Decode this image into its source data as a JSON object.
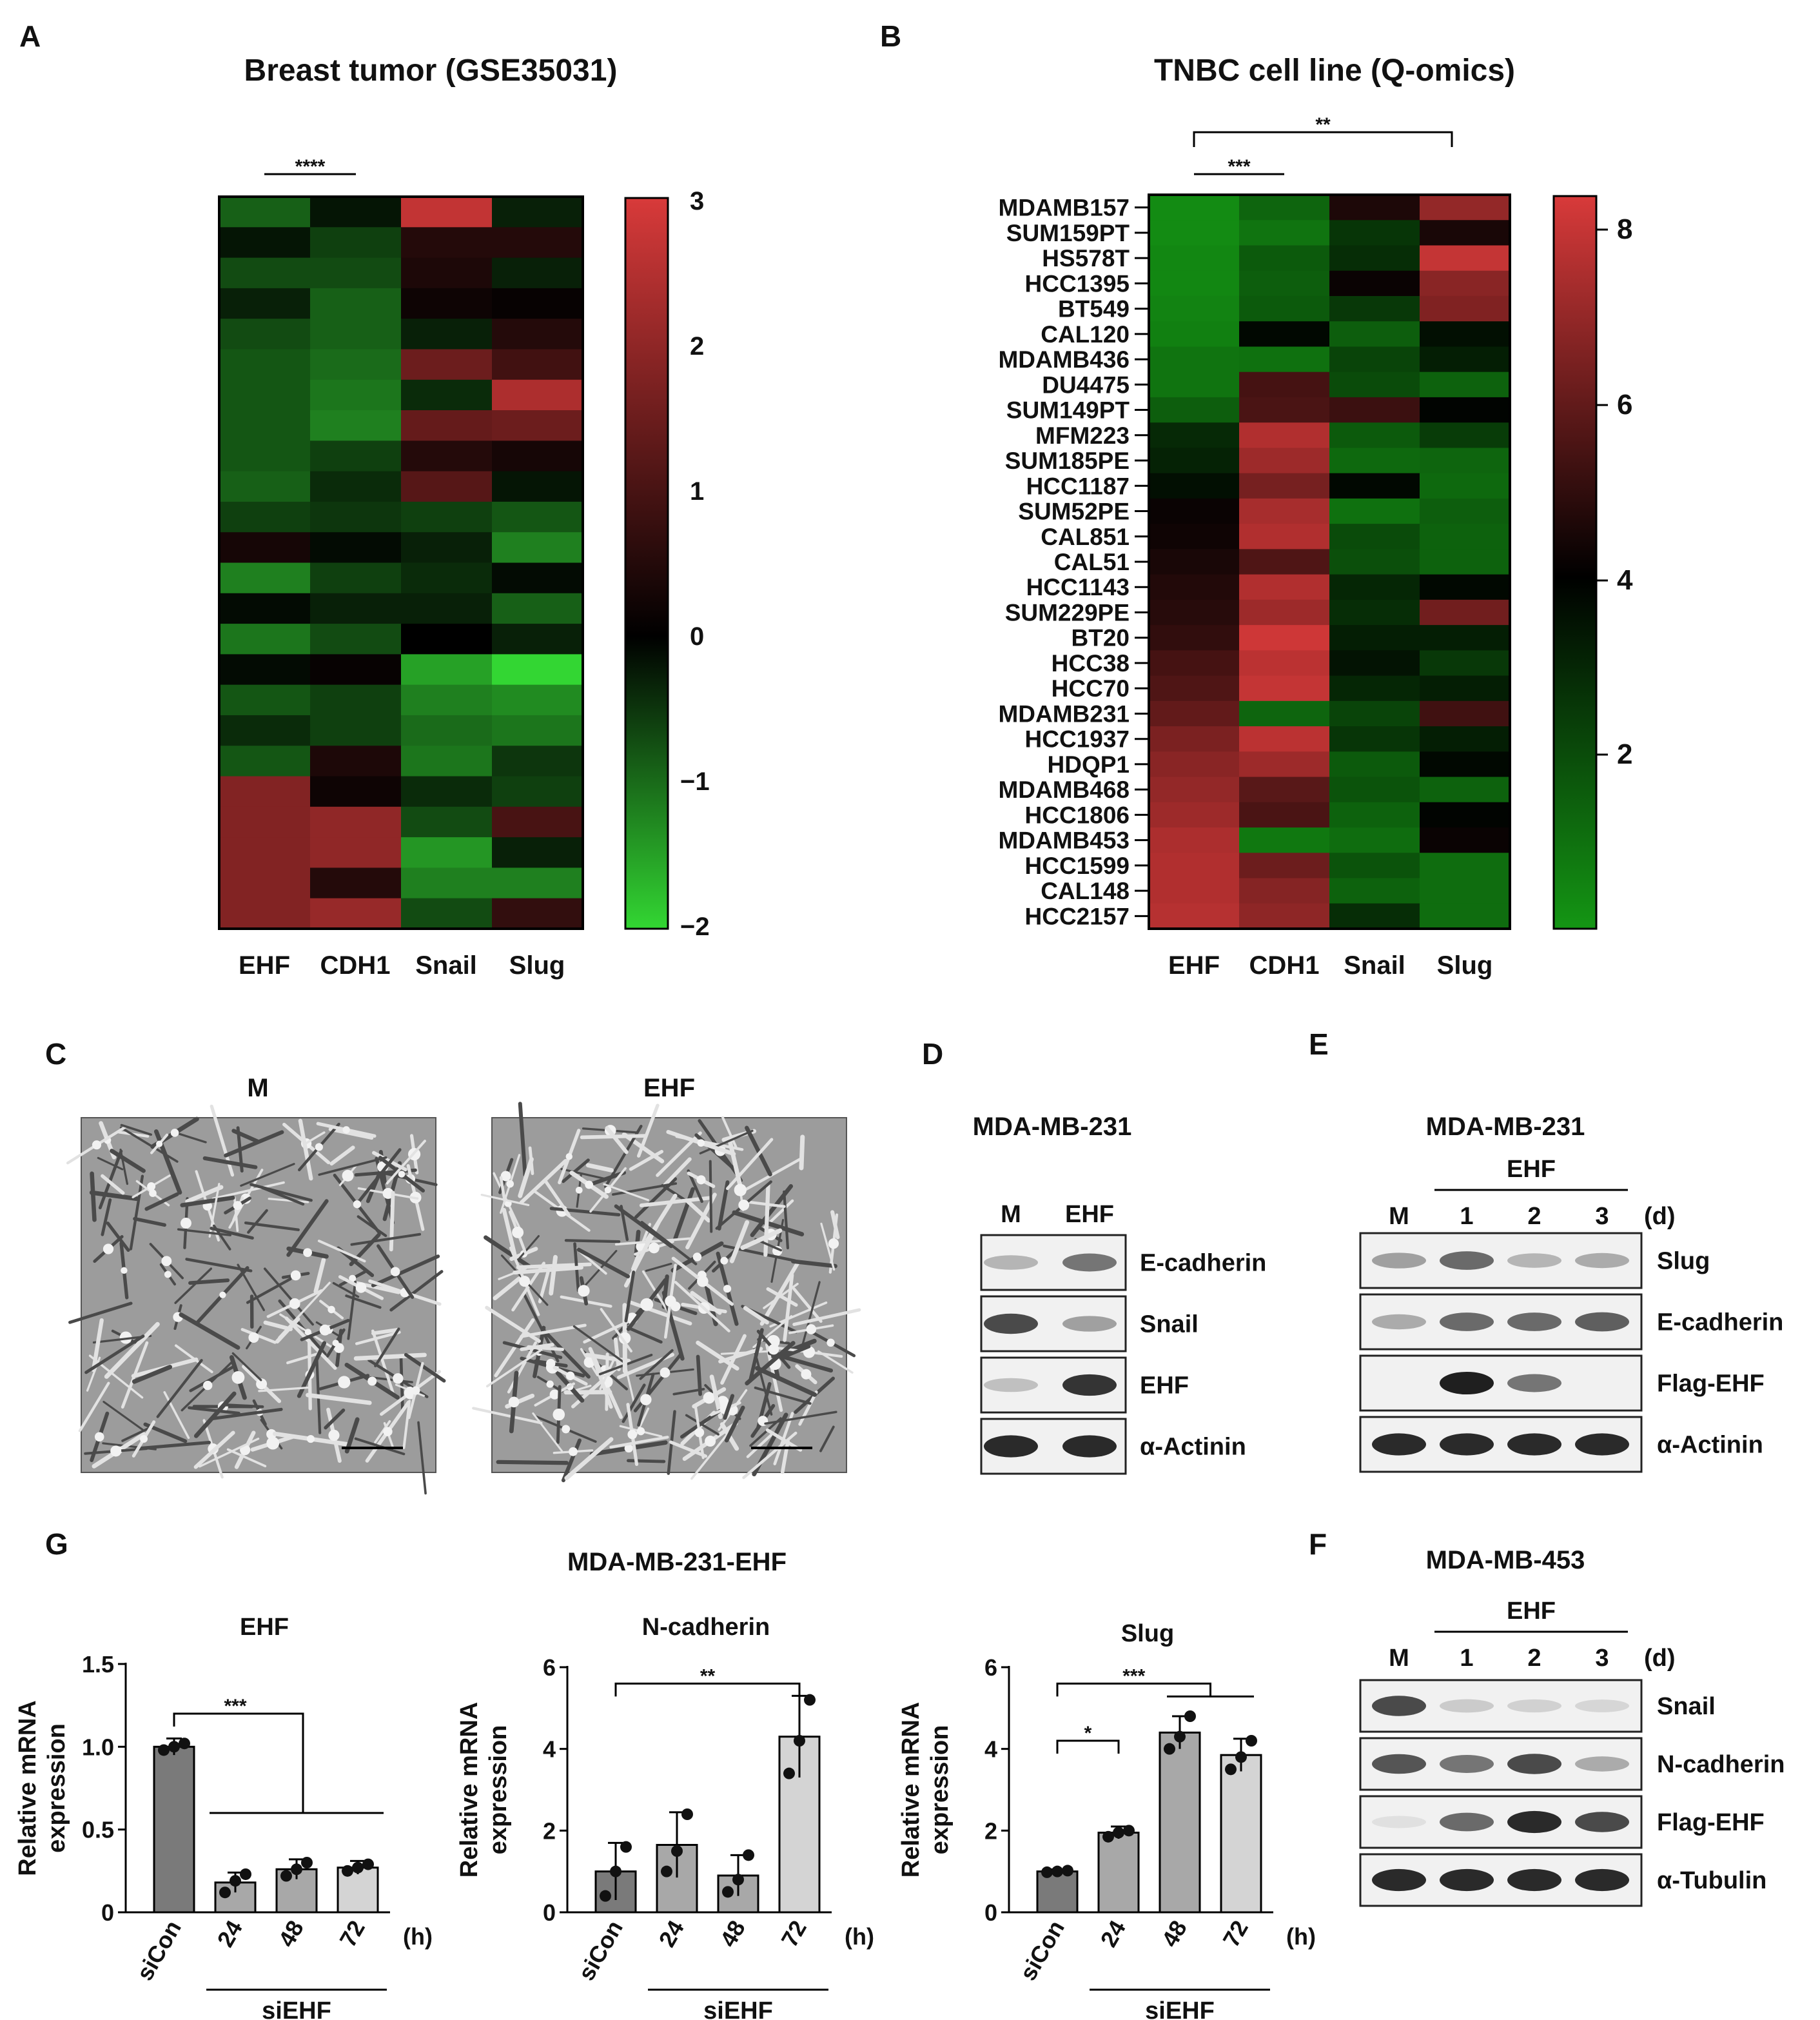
{
  "panel_letters": {
    "A": "A",
    "B": "B",
    "C": "C",
    "D": "D",
    "E": "E",
    "F": "F",
    "G": "G"
  },
  "colors": {
    "low": "#33d633",
    "mid": "#000000",
    "high": "#d83a3a",
    "bar_dark": "#7a7a7a",
    "bar_mid": "#a8a8a8",
    "bar_light": "#d4d4d4",
    "blot_bg": "#f1f1f1",
    "micro_bg": "#9c9c9c"
  },
  "panel_a": {
    "title": "Breast tumor (GSE35031)",
    "columns": [
      "EHF",
      "CDH1",
      "Snail",
      "Slug"
    ],
    "colorbar_ticks": [
      "3",
      "2",
      "1",
      "0",
      "−1",
      "−2"
    ],
    "significance": {
      "label": "****",
      "from": "EHF",
      "to": "CDH1"
    },
    "chart_data": {
      "type": "heatmap",
      "scale": [
        -2,
        3
      ],
      "columns": [
        "EHF",
        "CDH1",
        "Snail",
        "Slug"
      ],
      "values": [
        [
          -0.9,
          -0.2,
          2.7,
          -0.3
        ],
        [
          -0.2,
          -0.6,
          0.5,
          0.5
        ],
        [
          -0.7,
          -0.7,
          0.4,
          -0.3
        ],
        [
          -0.3,
          -0.9,
          0.2,
          0.1
        ],
        [
          -0.7,
          -0.9,
          -0.3,
          0.5
        ],
        [
          -0.8,
          -1.0,
          1.5,
          0.9
        ],
        [
          -0.8,
          -1.1,
          -0.4,
          2.4
        ],
        [
          -0.8,
          -1.2,
          1.4,
          1.5
        ],
        [
          -0.8,
          -0.6,
          0.5,
          0.3
        ],
        [
          -0.9,
          -0.4,
          1.2,
          -0.2
        ],
        [
          -0.6,
          -0.5,
          -0.6,
          -0.8
        ],
        [
          0.3,
          -0.1,
          -0.3,
          -1.2
        ],
        [
          -1.2,
          -0.6,
          -0.4,
          -0.1
        ],
        [
          -0.1,
          -0.3,
          -0.3,
          -0.9
        ],
        [
          -1.1,
          -0.7,
          0.0,
          -0.3
        ],
        [
          -0.1,
          0.1,
          -1.5,
          -2.0
        ],
        [
          -0.8,
          -0.6,
          -1.2,
          -1.3
        ],
        [
          -0.4,
          -0.6,
          -1.0,
          -1.1
        ],
        [
          -0.8,
          0.4,
          -1.1,
          -0.5
        ],
        [
          1.8,
          0.2,
          -0.4,
          -0.6
        ],
        [
          1.8,
          2.0,
          -0.7,
          1.0
        ],
        [
          1.8,
          2.0,
          -1.4,
          -0.3
        ],
        [
          1.8,
          0.5,
          -1.2,
          -1.2
        ],
        [
          1.8,
          2.1,
          -0.7,
          0.7
        ]
      ]
    }
  },
  "panel_b": {
    "title": "TNBC cell line (Q-omics)",
    "columns": [
      "EHF",
      "CDH1",
      "Snail",
      "Slug"
    ],
    "colorbar_ticks": [
      "8",
      "6",
      "4",
      "2"
    ],
    "sig_top": "**",
    "sig_bottom": "***",
    "chart_data": {
      "type": "heatmap",
      "scale": [
        0,
        8.4
      ],
      "rows": [
        "MDAMB157",
        "SUM159PT",
        "HS578T",
        "HCC1395",
        "BT549",
        "CAL120",
        "MDAMB436",
        "DU4475",
        "SUM149PT",
        "MFM223",
        "SUM185PE",
        "HCC1187",
        "SUM52PE",
        "CAL851",
        "CAL51",
        "HCC1143",
        "SUM229PE",
        "BT20",
        "HCC38",
        "HCC70",
        "MDAMB231",
        "HCC1937",
        "HDQP1",
        "MDAMB468",
        "HCC1806",
        "MDAMB453",
        "HCC1599",
        "CAL148",
        "HCC2157"
      ],
      "columns": [
        "EHF",
        "CDH1",
        "Snail",
        "Slug"
      ],
      "values": [
        [
          0.3,
          1.3,
          4.6,
          7.0
        ],
        [
          0.3,
          0.9,
          2.6,
          4.5
        ],
        [
          0.4,
          1.6,
          2.8,
          8.0
        ],
        [
          0.4,
          1.5,
          4.2,
          6.8
        ],
        [
          0.5,
          1.6,
          2.5,
          6.6
        ],
        [
          0.6,
          3.8,
          1.5,
          3.6
        ],
        [
          0.9,
          1.0,
          2.2,
          3.2
        ],
        [
          0.9,
          5.4,
          2.0,
          1.4
        ],
        [
          1.5,
          5.5,
          5.2,
          3.9
        ],
        [
          2.9,
          7.6,
          1.6,
          2.4
        ],
        [
          3.1,
          7.2,
          1.2,
          1.3
        ],
        [
          3.6,
          6.4,
          3.8,
          1.2
        ],
        [
          4.2,
          7.4,
          1.0,
          1.5
        ],
        [
          4.3,
          7.6,
          2.0,
          1.4
        ],
        [
          4.5,
          5.6,
          1.9,
          1.4
        ],
        [
          4.7,
          7.6,
          3.0,
          3.8
        ],
        [
          4.8,
          7.2,
          2.8,
          6.3
        ],
        [
          5.0,
          8.2,
          3.2,
          3.2
        ],
        [
          5.4,
          7.8,
          3.5,
          2.5
        ],
        [
          5.6,
          8.0,
          3.0,
          3.2
        ],
        [
          6.0,
          1.3,
          2.2,
          5.3
        ],
        [
          6.5,
          7.8,
          2.6,
          3.2
        ],
        [
          6.8,
          7.2,
          1.6,
          3.8
        ],
        [
          7.0,
          5.8,
          1.8,
          1.4
        ],
        [
          7.2,
          5.5,
          1.4,
          3.9
        ],
        [
          7.5,
          0.8,
          1.1,
          4.2
        ],
        [
          7.6,
          6.2,
          1.8,
          1.1
        ],
        [
          7.6,
          6.7,
          1.4,
          1.1
        ],
        [
          7.7,
          6.9,
          2.8,
          1.1
        ]
      ]
    }
  },
  "panel_c": {
    "left_label": "M",
    "right_label": "EHF"
  },
  "panel_d": {
    "cell_line": "MDA-MB-231",
    "lanes": [
      "M",
      "EHF"
    ],
    "bands": [
      "E-cadherin",
      "Snail",
      "EHF",
      "α-Actinin"
    ],
    "intensity": [
      [
        0.25,
        0.55
      ],
      [
        0.75,
        0.35
      ],
      [
        0.2,
        0.85
      ],
      [
        0.9,
        0.9
      ]
    ]
  },
  "panel_e": {
    "cell_line": "MDA-MB-231",
    "treatment": "EHF",
    "unit": "(d)",
    "lanes": [
      "M",
      "1",
      "2",
      "3"
    ],
    "bands": [
      "Slug",
      "E-cadherin",
      "Flag-EHF",
      "α-Actinin"
    ],
    "intensity": [
      [
        0.35,
        0.6,
        0.25,
        0.3
      ],
      [
        0.3,
        0.6,
        0.6,
        0.65
      ],
      [
        0.0,
        0.95,
        0.55,
        0.0
      ],
      [
        0.9,
        0.9,
        0.9,
        0.9
      ]
    ]
  },
  "panel_f": {
    "cell_line": "MDA-MB-453",
    "treatment": "EHF",
    "unit": "(d)",
    "lanes": [
      "M",
      "1",
      "2",
      "3"
    ],
    "bands": [
      "Snail",
      "N-cadherin",
      "Flag-EHF",
      "α-Tubulin"
    ],
    "intensity": [
      [
        0.75,
        0.15,
        0.12,
        0.1
      ],
      [
        0.7,
        0.55,
        0.75,
        0.3
      ],
      [
        0.05,
        0.6,
        0.9,
        0.75
      ],
      [
        0.9,
        0.9,
        0.9,
        0.9
      ]
    ]
  },
  "panel_g": {
    "title": "MDA-MB-231-EHF",
    "ylabel_1": "Relative mRNA",
    "ylabel_2": "expression",
    "unit": "(h)",
    "group_label": "siEHF",
    "chart_data": [
      {
        "type": "bar",
        "title": "EHF",
        "categories": [
          "siCon",
          "24",
          "48",
          "72"
        ],
        "values": [
          1.0,
          0.18,
          0.26,
          0.27
        ],
        "errors": [
          0.05,
          0.06,
          0.06,
          0.04
        ],
        "points": [
          [
            0.98,
            1.0,
            1.02
          ],
          [
            0.12,
            0.19,
            0.23
          ],
          [
            0.22,
            0.26,
            0.3
          ],
          [
            0.25,
            0.27,
            0.29
          ]
        ],
        "ylim": [
          0,
          1.5
        ],
        "yticks": [
          "0",
          "0.5",
          "1.0",
          "1.5"
        ],
        "significance": [
          {
            "label": "***",
            "from": 0,
            "to": [
              1,
              2,
              3
            ]
          }
        ]
      },
      {
        "type": "bar",
        "title": "N-cadherin",
        "categories": [
          "siCon",
          "24",
          "48",
          "72"
        ],
        "values": [
          1.0,
          1.65,
          0.9,
          4.3
        ],
        "errors": [
          0.7,
          0.8,
          0.5,
          1.0
        ],
        "points": [
          [
            0.4,
            1.0,
            1.6
          ],
          [
            1.0,
            1.5,
            2.4
          ],
          [
            0.5,
            0.8,
            1.4
          ],
          [
            3.4,
            4.2,
            5.2
          ]
        ],
        "ylim": [
          0,
          6
        ],
        "yticks": [
          "0",
          "2",
          "4",
          "6"
        ],
        "significance": [
          {
            "label": "**",
            "from": 0,
            "to": [
              3
            ]
          }
        ]
      },
      {
        "type": "bar",
        "title": "Slug",
        "categories": [
          "siCon",
          "24",
          "48",
          "72"
        ],
        "values": [
          1.0,
          1.95,
          4.4,
          3.85
        ],
        "errors": [
          0.05,
          0.15,
          0.4,
          0.4
        ],
        "points": [
          [
            0.98,
            1.0,
            1.02
          ],
          [
            1.85,
            1.95,
            2.0
          ],
          [
            4.0,
            4.3,
            4.8
          ],
          [
            3.5,
            3.8,
            4.2
          ]
        ],
        "ylim": [
          0,
          6
        ],
        "yticks": [
          "0",
          "2",
          "4",
          "6"
        ],
        "significance": [
          {
            "label": "*",
            "from": 0,
            "to": [
              1
            ]
          },
          {
            "label": "***",
            "from": 0,
            "to": [
              2,
              3
            ]
          }
        ]
      }
    ]
  }
}
